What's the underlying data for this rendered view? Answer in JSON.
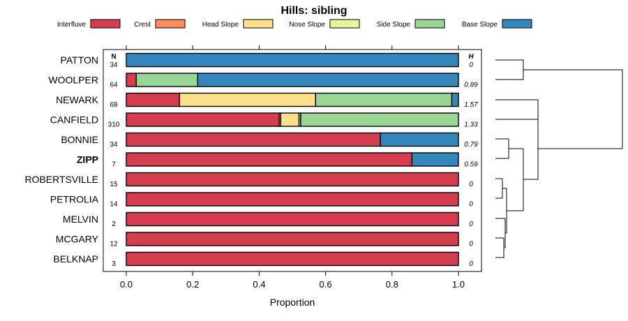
{
  "chart_data": {
    "type": "bar",
    "orientation": "horizontal",
    "stacked": true,
    "title": "Hills: sibling",
    "xlabel": "Proportion",
    "ylabel": "",
    "xlim": [
      0,
      1
    ],
    "x_ticks": [
      0.0,
      0.2,
      0.4,
      0.6,
      0.8,
      1.0
    ],
    "x_tick_labels": [
      "0.0",
      "0.2",
      "0.4",
      "0.6",
      "0.8",
      "1.0"
    ],
    "legend": {
      "position": "top",
      "entries": [
        "Interfluve",
        "Crest",
        "Head Slope",
        "Nose Slope",
        "Side Slope",
        "Base Slope"
      ]
    },
    "series_colors": [
      "#D53E4F",
      "#FC8D59",
      "#FEE08B",
      "#E6F598",
      "#99D594",
      "#3288BD"
    ],
    "n_header": "N",
    "h_header": "H",
    "categories": [
      "PATTON",
      "WOOLPER",
      "NEWARK",
      "CANFIELD",
      "BONNIE",
      "ZIPP",
      "ROBERTSVILLE",
      "PETROLIA",
      "MELVIN",
      "MCGARY",
      "BELKNAP"
    ],
    "highlight": "ZIPP",
    "n": [
      "34",
      "64",
      "68",
      "310",
      "34",
      "7",
      "15",
      "14",
      "2",
      "12",
      "3"
    ],
    "h": [
      "0",
      "0.89",
      "1.57",
      "1.33",
      "0.79",
      "0.59",
      "0",
      "0",
      "0",
      "0",
      "0"
    ],
    "series": [
      {
        "name": "Interfluve",
        "values": [
          0,
          0.03,
          0.16,
          0.46,
          0.765,
          0.86,
          1,
          1,
          1,
          1,
          1
        ]
      },
      {
        "name": "Crest",
        "values": [
          0,
          0,
          0,
          0.005,
          0,
          0,
          0,
          0,
          0,
          0,
          0
        ]
      },
      {
        "name": "Head Slope",
        "values": [
          0,
          0,
          0.41,
          0.055,
          0,
          0,
          0,
          0,
          0,
          0,
          0
        ]
      },
      {
        "name": "Nose Slope",
        "values": [
          0,
          0,
          0,
          0.005,
          0,
          0,
          0,
          0,
          0,
          0,
          0
        ]
      },
      {
        "name": "Side Slope",
        "values": [
          0,
          0.185,
          0.41,
          0.475,
          0,
          0,
          0,
          0,
          0,
          0,
          0
        ]
      },
      {
        "name": "Base Slope",
        "values": [
          1,
          0.785,
          0.02,
          0,
          0.235,
          0.14,
          0,
          0,
          0,
          0,
          0
        ]
      }
    ],
    "dendrogram": "hierarchical clustering of the series, drawn to the right of the plot"
  }
}
